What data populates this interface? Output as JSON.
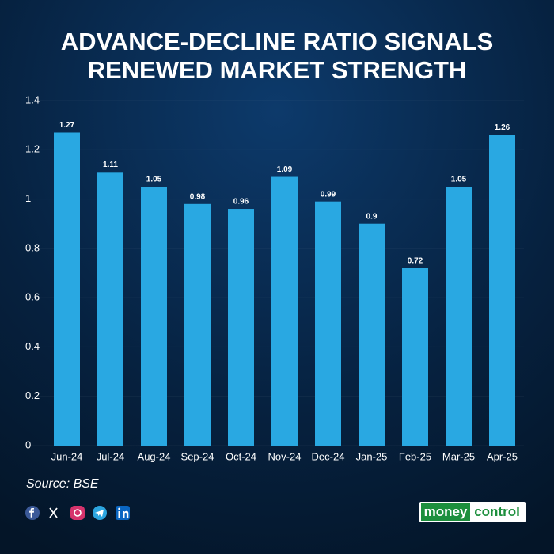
{
  "chart_data": {
    "type": "bar",
    "title": [
      "ADVANCE-DECLINE RATIO SIGNALS",
      "RENEWED MARKET STRENGTH"
    ],
    "categories": [
      "Jun-24",
      "Jul-24",
      "Aug-24",
      "Sep-24",
      "Oct-24",
      "Nov-24",
      "Dec-24",
      "Jan-25",
      "Feb-25",
      "Mar-25",
      "Apr-25"
    ],
    "values": [
      1.27,
      1.11,
      1.05,
      0.98,
      0.96,
      1.09,
      0.99,
      0.9,
      0.72,
      1.05,
      1.26
    ],
    "color": "#29a8e2",
    "ylim": [
      0,
      1.4
    ],
    "yticks": [
      0,
      0.2,
      0.4,
      0.6,
      0.8,
      1,
      1.2,
      1.4
    ],
    "grid": true,
    "source": "Source: BSE",
    "logo": {
      "left": "money",
      "right": "control"
    }
  }
}
